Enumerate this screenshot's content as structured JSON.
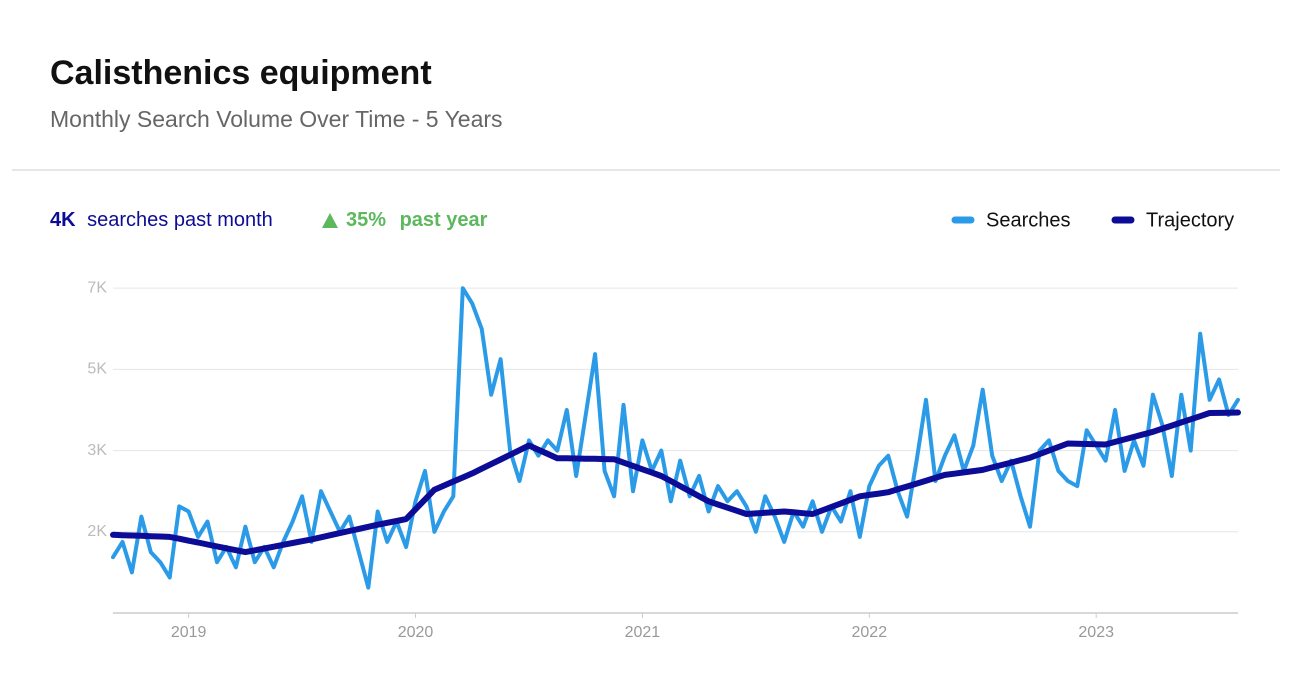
{
  "chart_data": {
    "type": "line",
    "title": "Calisthenics  equipment",
    "subtitle": "Monthly Search  Volume Over  Time -  5 Years",
    "stats": {
      "searches_value": "4K",
      "searches_label": "searches past month",
      "growth": "35%",
      "growth_label": "past year"
    },
    "xlim": [
      0,
      119
    ],
    "xticks": [
      {
        "value": 8,
        "label": "2019"
      },
      {
        "value": 32,
        "label": "2020"
      },
      {
        "value": 56,
        "label": "2021"
      },
      {
        "value": 80,
        "label": "2022"
      },
      {
        "value": 104,
        "label": "2023"
      }
    ],
    "ylim": [
      200,
      6800
    ],
    "yticks": [
      {
        "value": 1800,
        "label": "2K"
      },
      {
        "value": 3400,
        "label": "3K"
      },
      {
        "value": 5000,
        "label": "5K"
      },
      {
        "value": 6600,
        "label": "7K"
      }
    ],
    "grid": true,
    "legend": "top-right",
    "series": [
      {
        "name": "Searches",
        "color": "#2b9be8",
        "values": [
          1300,
          1600,
          1000,
          2100,
          1400,
          1200,
          900,
          2300,
          2200,
          1700,
          2000,
          1200,
          1500,
          1100,
          1900,
          1200,
          1500,
          1100,
          1600,
          2000,
          2500,
          1600,
          2600,
          2200,
          1800,
          2100,
          1400,
          700,
          2200,
          1600,
          2000,
          1500,
          2400,
          3000,
          1800,
          2200,
          2500,
          6600,
          6300,
          5800,
          4500,
          5200,
          3400,
          2800,
          3600,
          3300,
          3600,
          3400,
          4200,
          2900,
          4100,
          5300,
          3000,
          2500,
          4300,
          2600,
          3600,
          3000,
          3400,
          2400,
          3200,
          2500,
          2900,
          2200,
          2700,
          2400,
          2600,
          2300,
          1800,
          2500,
          2100,
          1600,
          2200,
          1900,
          2400,
          1800,
          2300,
          2000,
          2600,
          1700,
          2700,
          3100,
          3300,
          2600,
          2100,
          3200,
          4400,
          2800,
          3300,
          3700,
          3000,
          3500,
          4600,
          3300,
          2800,
          3200,
          2500,
          1900,
          3400,
          3600,
          3000,
          2800,
          2700,
          3800,
          3500,
          3200,
          4200,
          3000,
          3600,
          3100,
          4500,
          3900,
          2900,
          4500,
          3400,
          5700,
          4400,
          4800,
          4100,
          4400
        ]
      },
      {
        "name": "Trajectory",
        "color": "#0c0c96",
        "values": [
          1740,
          1733,
          1727,
          1720,
          1713,
          1707,
          1700,
          1663,
          1625,
          1588,
          1550,
          1513,
          1475,
          1438,
          1400,
          1436,
          1471,
          1507,
          1543,
          1579,
          1614,
          1650,
          1691,
          1733,
          1774,
          1816,
          1857,
          1899,
          1940,
          1977,
          2013,
          2050,
          2243,
          2437,
          2630,
          2710,
          2790,
          2870,
          2950,
          3042,
          3133,
          3225,
          3317,
          3408,
          3500,
          3417,
          3333,
          3250,
          3247,
          3243,
          3240,
          3237,
          3233,
          3230,
          3164,
          3098,
          3032,
          2966,
          2900,
          2800,
          2700,
          2600,
          2500,
          2400,
          2338,
          2275,
          2213,
          2150,
          2163,
          2175,
          2188,
          2200,
          2183,
          2167,
          2150,
          2220,
          2290,
          2360,
          2430,
          2500,
          2527,
          2553,
          2580,
          2637,
          2693,
          2750,
          2807,
          2863,
          2920,
          2945,
          2970,
          2995,
          3020,
          3068,
          3116,
          3164,
          3212,
          3260,
          3330,
          3400,
          3470,
          3540,
          3535,
          3530,
          3525,
          3520,
          3570,
          3620,
          3670,
          3720,
          3770,
          3832,
          3893,
          3955,
          4017,
          4078,
          4140,
          4143,
          4147,
          4150
        ]
      }
    ]
  }
}
